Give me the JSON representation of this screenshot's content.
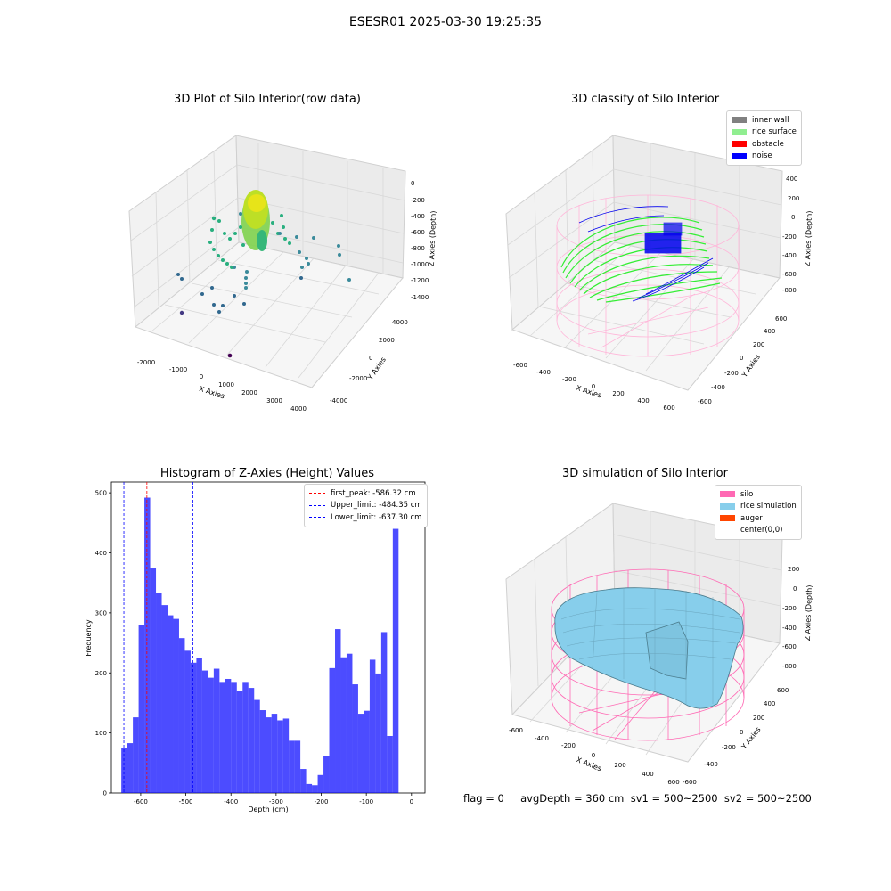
{
  "suptitle": "ESESR01 2025-03-30 19:25:35",
  "panels": {
    "raw": {
      "title": "3D Plot of Silo Interior(row data)",
      "xlabel": "X Axies",
      "ylabel": "Y Axies",
      "zlabel": "Z Axies (Depth)",
      "xticks": [
        "-2000",
        "-1000",
        "0",
        "1000",
        "2000",
        "3000",
        "4000"
      ],
      "yticks": [
        "-4000",
        "-2000",
        "0",
        "2000",
        "4000"
      ],
      "zticks": [
        "0",
        "-200",
        "-400",
        "-600",
        "-800",
        "-1000",
        "-1200",
        "-1400"
      ]
    },
    "classify": {
      "title": "3D classify of Silo Interior",
      "xlabel": "X Axies",
      "ylabel": "Y Axies",
      "zlabel": "Z Axies (Depth)",
      "xticks": [
        "-600",
        "-400",
        "-200",
        "0",
        "200",
        "400",
        "600"
      ],
      "yticks": [
        "-600",
        "-400",
        "-200",
        "0",
        "200",
        "400",
        "600"
      ],
      "zticks": [
        "400",
        "200",
        "0",
        "-200",
        "-400",
        "-600",
        "-800"
      ],
      "legend": [
        {
          "label": "inner wall",
          "color": "#808080"
        },
        {
          "label": "rice surface",
          "color": "#90ee90"
        },
        {
          "label": "obstacle",
          "color": "#ff0000"
        },
        {
          "label": "noise",
          "color": "#0000ff"
        }
      ]
    },
    "simulation": {
      "title": "3D simulation of Silo Interior",
      "xlabel": "X Axies",
      "ylabel": "Y Axies",
      "zlabel": "Z Axies (Depth)",
      "xticks": [
        "-600",
        "-400",
        "-200",
        "0",
        "200",
        "400",
        "600"
      ],
      "yticks": [
        "-600",
        "-400",
        "-200",
        "0",
        "200",
        "400",
        "600"
      ],
      "zticks": [
        "200",
        "0",
        "-200",
        "-400",
        "-600",
        "-800"
      ],
      "legend": [
        {
          "label": "silo",
          "color": "#ff69b4"
        },
        {
          "label": "rice simulation",
          "color": "#87ceeb"
        },
        {
          "label": "auger",
          "color": "#ff4500"
        },
        {
          "label": "center(0,0)",
          "color": ""
        }
      ]
    },
    "footer": "flag = 0     avgDepth = 360 cm  sv1 = 500~2500  sv2 = 500~2500"
  },
  "chart_data": {
    "type": "bar",
    "title": "Histogram of Z-Axies (Height) Values",
    "xlabel": "Depth (cm)",
    "ylabel": "Frequency",
    "xlim": [
      -665,
      30
    ],
    "ylim": [
      0,
      518
    ],
    "xticks": [
      -600,
      -500,
      -400,
      -300,
      -200,
      -100,
      0
    ],
    "yticks": [
      0,
      100,
      200,
      300,
      400,
      500
    ],
    "bin_width": 12.8,
    "bin_start": -643,
    "values": [
      75,
      83,
      126,
      280,
      492,
      374,
      333,
      313,
      296,
      290,
      258,
      237,
      217,
      225,
      204,
      192,
      207,
      185,
      190,
      185,
      170,
      185,
      175,
      155,
      138,
      126,
      132,
      121,
      124,
      87,
      87,
      40,
      15,
      13,
      30,
      62,
      208,
      273,
      226,
      232,
      181,
      132,
      137,
      222,
      199,
      268,
      95,
      440
    ],
    "color": "#0000ff",
    "lines": [
      {
        "label": "first_peak: -586.32 cm",
        "value": -586.32,
        "color": "#ff0000"
      },
      {
        "label": "Upper_limit: -484.35 cm",
        "value": -484.35,
        "color": "#0000ff"
      },
      {
        "label": "Lower_limit: -637.30 cm",
        "value": -637.3,
        "color": "#0000ff"
      }
    ]
  }
}
